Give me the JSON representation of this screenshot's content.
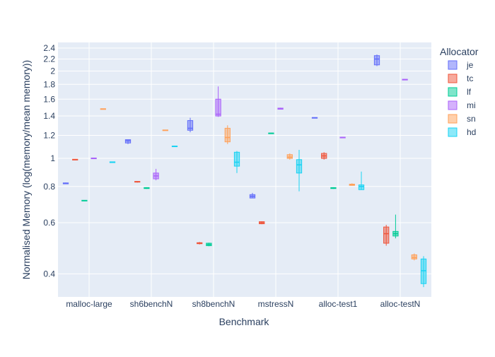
{
  "chart_data": {
    "type": "box",
    "x_label": "Benchmark",
    "y_label": "Normalised Memory (log(memory/mean memory))",
    "legend_title": "Allocator",
    "log_y": true,
    "grid": true,
    "categories": [
      "malloc-large",
      "sh6benchN",
      "sh8benchN",
      "mstressN",
      "alloc-test1",
      "alloc-testN"
    ],
    "ylim": [
      0.333,
      2.51
    ],
    "yticks": [
      0.4,
      0.6,
      0.8,
      1,
      1.2,
      1.4,
      1.6,
      1.8,
      2,
      2.2,
      2.4
    ],
    "series": [
      {
        "name": "je",
        "color": "#636efa",
        "min": [
          0.815,
          1.12,
          1.23,
          0.73,
          1.375,
          2.08
        ],
        "q1": [
          0.817,
          1.13,
          1.25,
          0.73,
          1.377,
          2.1
        ],
        "median": [
          0.82,
          1.15,
          1.27,
          0.74,
          1.38,
          2.2
        ],
        "q3": [
          0.823,
          1.16,
          1.35,
          0.75,
          1.383,
          2.26
        ],
        "max": [
          0.825,
          1.16,
          1.38,
          0.76,
          1.385,
          2.28
        ]
      },
      {
        "name": "tc",
        "color": "#ef553b",
        "min": [
          0.985,
          0.825,
          0.505,
          0.593,
          0.99,
          0.5
        ],
        "q1": [
          0.987,
          0.828,
          0.508,
          0.595,
          1.0,
          0.51
        ],
        "median": [
          0.99,
          0.83,
          0.51,
          0.6,
          1.02,
          0.55
        ],
        "q3": [
          0.993,
          0.833,
          0.512,
          0.605,
          1.04,
          0.58
        ],
        "max": [
          0.995,
          0.835,
          0.515,
          0.607,
          1.05,
          0.59
        ]
      },
      {
        "name": "lf",
        "color": "#00cc96",
        "min": [
          0.712,
          0.785,
          0.498,
          1.215,
          0.785,
          0.53
        ],
        "q1": [
          0.713,
          0.787,
          0.5,
          1.217,
          0.787,
          0.54
        ],
        "median": [
          0.715,
          0.79,
          0.505,
          1.22,
          0.79,
          0.55
        ],
        "q3": [
          0.717,
          0.793,
          0.51,
          1.223,
          0.793,
          0.56
        ],
        "max": [
          0.718,
          0.795,
          0.512,
          1.225,
          0.795,
          0.64
        ]
      },
      {
        "name": "mi",
        "color": "#ab63fa",
        "min": [
          0.995,
          0.84,
          1.39,
          1.475,
          1.175,
          1.865
        ],
        "q1": [
          0.997,
          0.85,
          1.4,
          1.477,
          1.177,
          1.867
        ],
        "median": [
          1.0,
          0.87,
          1.42,
          1.48,
          1.18,
          1.87
        ],
        "q3": [
          1.003,
          0.89,
          1.6,
          1.49,
          1.183,
          1.873
        ],
        "max": [
          1.005,
          0.92,
          1.77,
          1.495,
          1.185,
          1.875
        ]
      },
      {
        "name": "sn",
        "color": "#ffa15a",
        "min": [
          1.475,
          1.245,
          1.12,
          0.99,
          0.805,
          0.445
        ],
        "q1": [
          1.477,
          1.247,
          1.14,
          1.0,
          0.807,
          0.45
        ],
        "median": [
          1.48,
          1.25,
          1.18,
          1.01,
          0.81,
          0.455
        ],
        "q3": [
          1.483,
          1.253,
          1.27,
          1.03,
          0.815,
          0.465
        ],
        "max": [
          1.485,
          1.255,
          1.3,
          1.04,
          0.82,
          0.47
        ]
      },
      {
        "name": "hd",
        "color": "#19d3f3",
        "min": [
          0.965,
          1.095,
          0.89,
          0.77,
          0.78,
          0.36
        ],
        "q1": [
          0.967,
          1.097,
          0.94,
          0.89,
          0.78,
          0.37
        ],
        "median": [
          0.97,
          1.1,
          0.97,
          0.95,
          0.8,
          0.41
        ],
        "q3": [
          0.973,
          1.103,
          1.05,
          0.99,
          0.81,
          0.45
        ],
        "max": [
          0.975,
          1.105,
          1.06,
          1.07,
          0.9,
          0.46
        ]
      }
    ]
  }
}
